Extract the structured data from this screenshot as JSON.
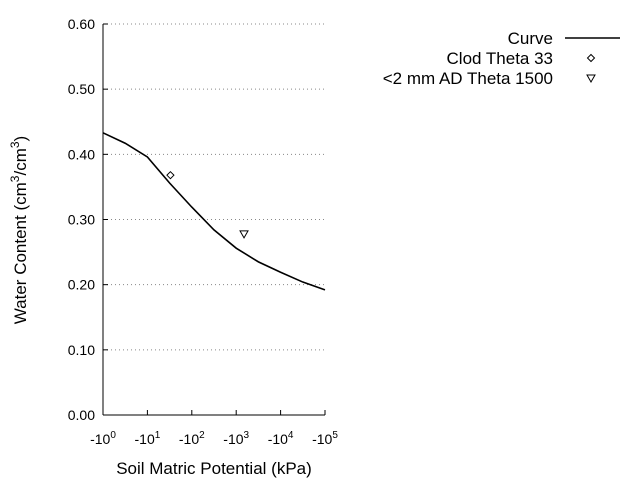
{
  "chart_data": {
    "type": "line",
    "x_label": "Soil Matric Potential (kPa)",
    "y_label": [
      "Water Content (cm",
      "3",
      "/cm",
      "3",
      ")"
    ],
    "xscale": "log",
    "xlim": [
      1,
      100000
    ],
    "xticks": [
      {
        "value": 1,
        "label": "-10",
        "label_sup": "0"
      },
      {
        "value": 10,
        "label": "-10",
        "label_sup": "1"
      },
      {
        "value": 100,
        "label": "-10",
        "label_sup": "2"
      },
      {
        "value": 1000,
        "label": "-10",
        "label_sup": "3"
      },
      {
        "value": 10000,
        "label": "-10",
        "label_sup": "4"
      },
      {
        "value": 100000,
        "label": "-10",
        "label_sup": "5"
      }
    ],
    "ylim": [
      0,
      0.6
    ],
    "yticks": [
      {
        "value": 0,
        "label": "0.00"
      },
      {
        "value": 0.1,
        "label": "0.10"
      },
      {
        "value": 0.2,
        "label": "0.20"
      },
      {
        "value": 0.3,
        "label": "0.30"
      },
      {
        "value": 0.4,
        "label": "0.40"
      },
      {
        "value": 0.5,
        "label": "0.50"
      },
      {
        "value": 0.6,
        "label": "0.60"
      }
    ],
    "grid": true,
    "legend": "outside-top-right",
    "series": [
      {
        "name": "Curve",
        "color": "#000000",
        "marker": "line",
        "x": [
          1,
          3.16,
          10,
          31.6,
          100,
          316,
          1000,
          3162,
          10000,
          31623,
          100000
        ],
        "values": [
          0.433,
          0.417,
          0.396,
          0.356,
          0.319,
          0.284,
          0.256,
          0.235,
          0.219,
          0.204,
          0.192
        ]
      },
      {
        "name": "Clod Theta 33",
        "color": "#000000",
        "marker": "diamond",
        "x": [
          33
        ],
        "values": [
          0.368
        ]
      },
      {
        "name": "<2 mm AD Theta 1500",
        "color": "#000000",
        "marker": "triangle-down",
        "x": [
          1500
        ],
        "values": [
          0.278
        ]
      }
    ]
  }
}
